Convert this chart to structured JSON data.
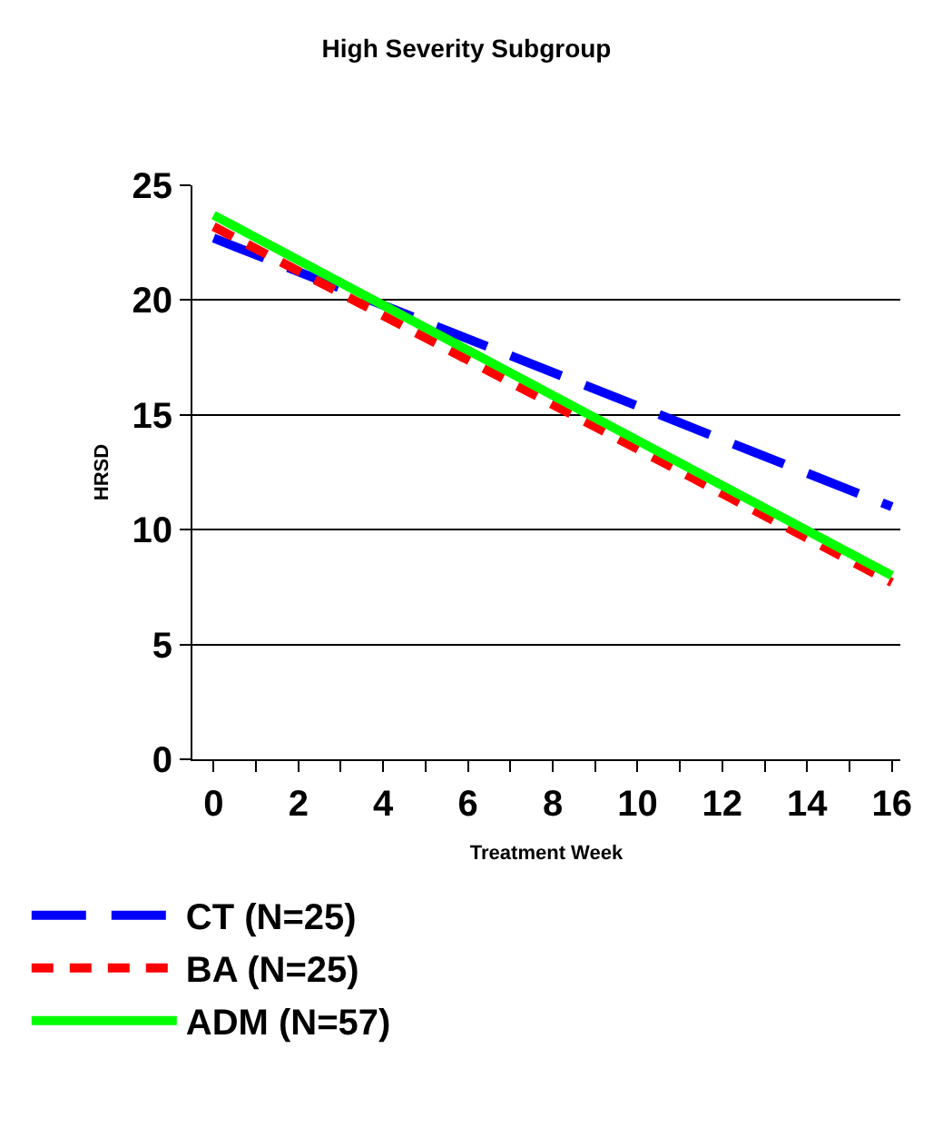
{
  "chart_data": {
    "type": "line",
    "title": "High Severity Subgroup",
    "xlabel": "Treatment Week",
    "ylabel": "HRSD",
    "x": [
      0,
      16
    ],
    "series": [
      {
        "name": "CT (N=25)",
        "color": "#0000ff",
        "values": [
          22.7,
          11
        ],
        "line_style": "dashed"
      },
      {
        "name": "BA (N=25)",
        "color": "#ff0000",
        "values": [
          23.2,
          7.7
        ],
        "line_style": "dotted"
      },
      {
        "name": "ADM (N=57)",
        "color": "#00ff00",
        "values": [
          23.7,
          8
        ],
        "line_style": "solid"
      }
    ],
    "xlim": [
      -0.5,
      16.2
    ],
    "ylim": [
      0,
      25
    ],
    "xticks": [
      0,
      {
        "value": 1,
        "label": null
      },
      2,
      {
        "value": 3,
        "label": null
      },
      4,
      {
        "value": 5,
        "label": null
      },
      6,
      {
        "value": 7,
        "label": null
      },
      8,
      {
        "value": 9,
        "label": null
      },
      10,
      {
        "value": 11,
        "label": null
      },
      12,
      {
        "value": 13,
        "label": null
      },
      14,
      {
        "value": 15,
        "label": null
      },
      16
    ],
    "yticks": [
      0,
      5,
      10,
      15,
      20,
      25
    ],
    "grid": "y",
    "legend": "bottom"
  }
}
